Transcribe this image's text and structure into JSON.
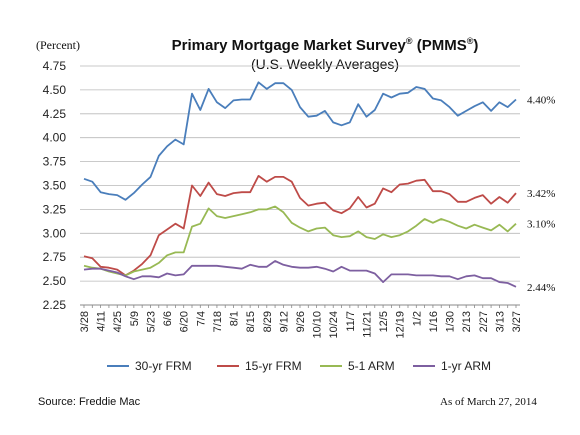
{
  "chart_data": {
    "type": "line",
    "title": "Primary Mortgage Market Survey",
    "title_mark": "®",
    "title_paren": "(PMMS",
    "title_paren_mark": "®",
    "title_end": ")",
    "subtitle": "(U.S. Weekly Averages)",
    "ylabel": "(Percent)",
    "ylim": [
      2.25,
      4.75
    ],
    "yticks": [
      "4.75",
      "4.50",
      "4.25",
      "4.00",
      "3.75",
      "3.50",
      "3.25",
      "3.00",
      "2.75",
      "2.50",
      "2.25"
    ],
    "x_tick_labels": [
      "3/28",
      "4/11",
      "4/25",
      "5/9",
      "5/23",
      "6/6",
      "6/20",
      "7/4",
      "7/18",
      "8/1",
      "8/15",
      "8/29",
      "9/12",
      "9/26",
      "10/10",
      "10/24",
      "11/7",
      "11/21",
      "12/5",
      "12/19",
      "1/2",
      "1/16",
      "1/30",
      "2/13",
      "2/27",
      "3/13",
      "3/27"
    ],
    "grid": true,
    "legend_position": "bottom",
    "series": [
      {
        "name": "30-yr FRM",
        "color": "#4a7ebb",
        "end_label": "4.40%",
        "values": [
          3.57,
          3.54,
          3.43,
          3.41,
          3.4,
          3.35,
          3.42,
          3.51,
          3.59,
          3.81,
          3.91,
          3.98,
          3.93,
          4.46,
          4.29,
          4.51,
          4.37,
          4.31,
          4.39,
          4.4,
          4.4,
          4.58,
          4.51,
          4.57,
          4.57,
          4.5,
          4.32,
          4.22,
          4.23,
          4.28,
          4.16,
          4.13,
          4.16,
          4.35,
          4.22,
          4.29,
          4.46,
          4.42,
          4.46,
          4.47,
          4.53,
          4.51,
          4.41,
          4.39,
          4.32,
          4.23,
          4.28,
          4.33,
          4.37,
          4.28,
          4.37,
          4.32,
          4.4
        ]
      },
      {
        "name": "15-yr FRM",
        "color": "#be4b48",
        "end_label": "3.42%",
        "values": [
          2.76,
          2.74,
          2.65,
          2.64,
          2.62,
          2.56,
          2.61,
          2.68,
          2.77,
          2.98,
          3.04,
          3.1,
          3.05,
          3.5,
          3.39,
          3.53,
          3.41,
          3.39,
          3.42,
          3.43,
          3.43,
          3.6,
          3.54,
          3.59,
          3.59,
          3.54,
          3.37,
          3.29,
          3.31,
          3.32,
          3.24,
          3.21,
          3.26,
          3.38,
          3.27,
          3.31,
          3.47,
          3.43,
          3.51,
          3.52,
          3.55,
          3.56,
          3.44,
          3.44,
          3.41,
          3.33,
          3.33,
          3.37,
          3.4,
          3.31,
          3.38,
          3.32,
          3.42
        ]
      },
      {
        "name": "5-1 ARM",
        "color": "#98b954",
        "end_label": "3.10%",
        "values": [
          2.66,
          2.64,
          2.63,
          2.6,
          2.58,
          2.56,
          2.6,
          2.62,
          2.64,
          2.69,
          2.77,
          2.8,
          2.8,
          3.07,
          3.1,
          3.26,
          3.18,
          3.16,
          3.18,
          3.2,
          3.22,
          3.25,
          3.25,
          3.28,
          3.22,
          3.11,
          3.06,
          3.02,
          3.05,
          3.06,
          2.98,
          2.96,
          2.97,
          3.02,
          2.96,
          2.94,
          2.99,
          2.96,
          2.98,
          3.02,
          3.08,
          3.15,
          3.11,
          3.15,
          3.12,
          3.08,
          3.05,
          3.09,
          3.06,
          3.03,
          3.09,
          3.02,
          3.1
        ]
      },
      {
        "name": "1-yr ARM",
        "color": "#7d5fa0",
        "end_label": "2.44%",
        "values": [
          2.62,
          2.63,
          2.63,
          2.61,
          2.59,
          2.55,
          2.52,
          2.55,
          2.55,
          2.54,
          2.58,
          2.56,
          2.57,
          2.66,
          2.66,
          2.66,
          2.66,
          2.65,
          2.64,
          2.63,
          2.67,
          2.65,
          2.65,
          2.71,
          2.67,
          2.65,
          2.64,
          2.64,
          2.65,
          2.63,
          2.6,
          2.65,
          2.61,
          2.61,
          2.61,
          2.58,
          2.49,
          2.57,
          2.57,
          2.57,
          2.56,
          2.56,
          2.56,
          2.55,
          2.55,
          2.52,
          2.55,
          2.56,
          2.53,
          2.53,
          2.49,
          2.48,
          2.44
        ]
      }
    ]
  },
  "footer": {
    "source": "Source: Freddie Mac",
    "as_of": "As of March 27, 2014"
  }
}
